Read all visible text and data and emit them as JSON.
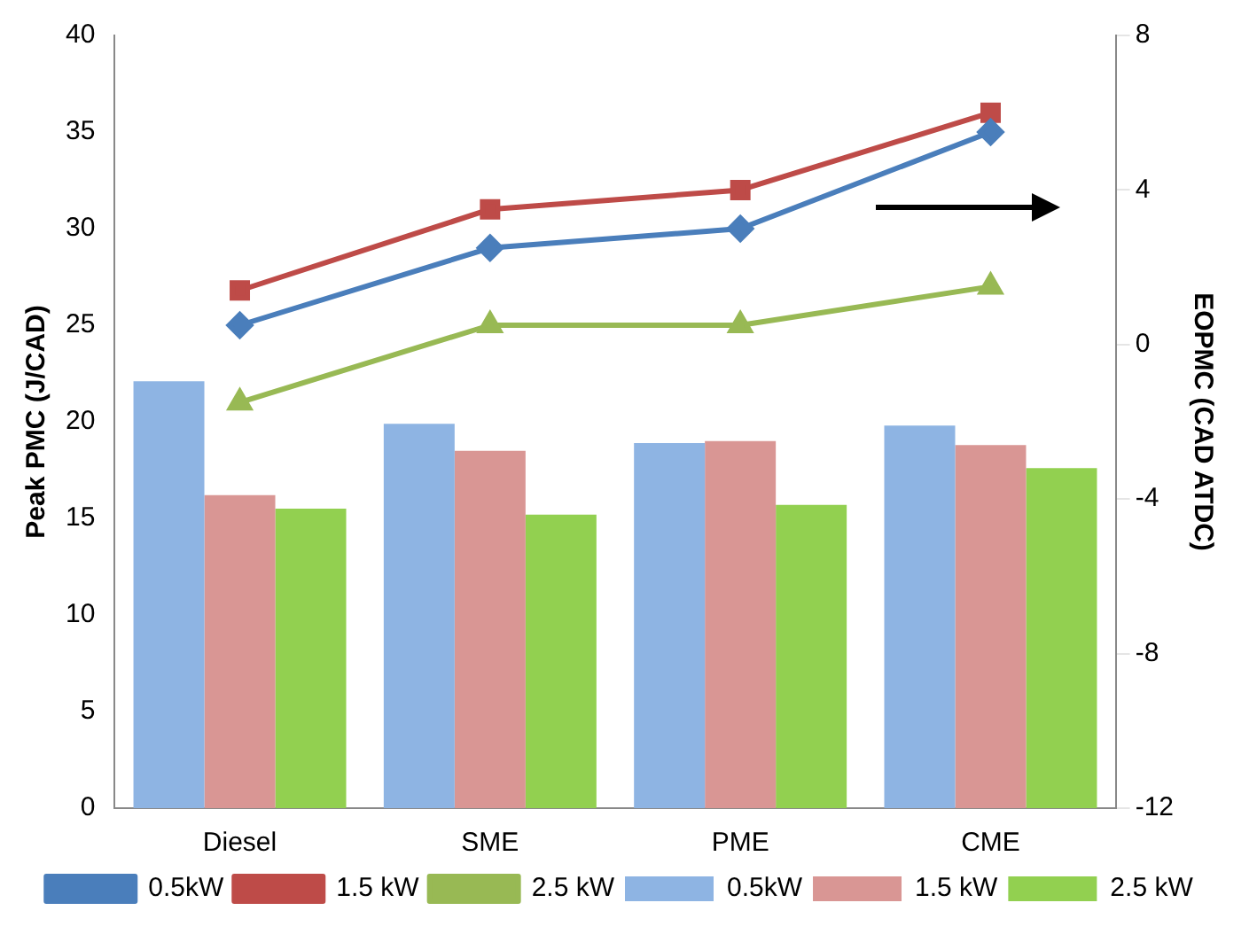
{
  "chart_data": {
    "type": "bar",
    "ylabel": "Peak PMC (J/CAD)",
    "y2label": "EOPMC (CAD ATDC)",
    "categories": [
      "Diesel",
      "SME",
      "PME",
      "CME"
    ],
    "series": [
      {
        "name": "0.5kW",
        "color": "#8eb4e3",
        "values": [
          22.1,
          19.9,
          18.9,
          19.8
        ]
      },
      {
        "name": "1.5 kW",
        "color": "#d99694",
        "values": [
          16.2,
          18.5,
          19.0,
          18.8
        ]
      },
      {
        "name": "2.5 kW",
        "color": "#92d050",
        "values": [
          15.5,
          15.2,
          15.7,
          17.6
        ]
      },
      {
        "name": "0.5kW",
        "type": "line",
        "axis": "y2",
        "marker": "diamond",
        "color": "#4a7ebb",
        "values": [
          0.5,
          2.5,
          3.0,
          5.5
        ]
      },
      {
        "name": "1.5 kW",
        "type": "line",
        "axis": "y2",
        "marker": "square",
        "color": "#be4b48",
        "values": [
          1.4,
          3.5,
          4.0,
          6.0
        ]
      },
      {
        "name": "2.5 kW",
        "type": "line",
        "axis": "y2",
        "marker": "triangle",
        "color": "#98b954",
        "values": [
          -1.5,
          0.5,
          0.5,
          1.5
        ]
      }
    ],
    "ylim": [
      0,
      40
    ],
    "yticks": [
      0,
      5,
      10,
      15,
      20,
      25,
      30,
      35,
      40
    ],
    "y2lim": [
      -12,
      8
    ],
    "y2ticks": [
      -12,
      -8,
      -4,
      0,
      4,
      8
    ],
    "grid": false,
    "legend": "bottom"
  }
}
